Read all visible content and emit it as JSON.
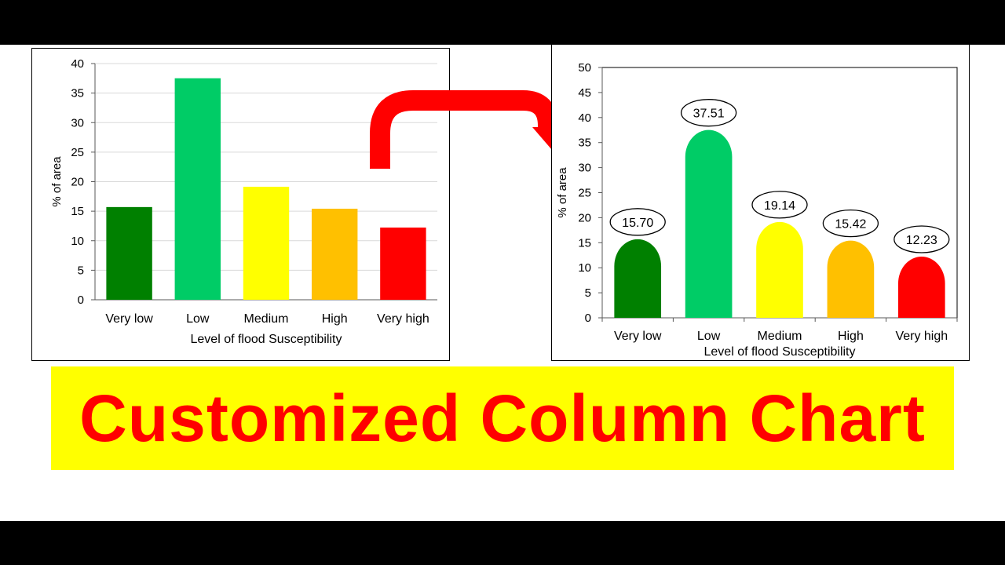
{
  "banner": {
    "title": "Customized Column Chart"
  },
  "colors": {
    "very_low": "#008000",
    "low": "#00cc66",
    "medium": "#ffff00",
    "high": "#ffc000",
    "very_high": "#ff0000",
    "arrow": "#ff0000",
    "banner_bg": "#ffff00",
    "banner_text": "#ff0000"
  },
  "chart_data": [
    {
      "type": "bar",
      "style": "standard rectangular columns",
      "categories": [
        "Very low",
        "Low",
        "Medium",
        "High",
        "Very high"
      ],
      "values": [
        15.7,
        37.51,
        19.14,
        15.42,
        12.23
      ],
      "xlabel": "Level of flood Susceptibility",
      "ylabel": "% of area",
      "ylim": [
        0,
        40
      ],
      "yticks": [
        0,
        5,
        10,
        15,
        20,
        25,
        30,
        35,
        40
      ],
      "grid": true,
      "data_labels": false,
      "colors": [
        "#008000",
        "#00cc66",
        "#ffff00",
        "#ffc000",
        "#ff0000"
      ]
    },
    {
      "type": "bar",
      "style": "rounded (bullet-shaped) columns with oval data labels",
      "categories": [
        "Very low",
        "Low",
        "Medium",
        "High",
        "Very high"
      ],
      "values": [
        15.7,
        37.51,
        19.14,
        15.42,
        12.23
      ],
      "value_labels": [
        "15.70",
        "37.51",
        "19.14",
        "15.42",
        "12.23"
      ],
      "xlabel": "Level of flood Susceptibility",
      "ylabel": "% of area",
      "ylim": [
        0,
        50
      ],
      "yticks": [
        0,
        5,
        10,
        15,
        20,
        25,
        30,
        35,
        40,
        45,
        50
      ],
      "grid": false,
      "data_labels": true,
      "colors": [
        "#008000",
        "#00cc66",
        "#ffff00",
        "#ffc000",
        "#ff0000"
      ]
    }
  ]
}
